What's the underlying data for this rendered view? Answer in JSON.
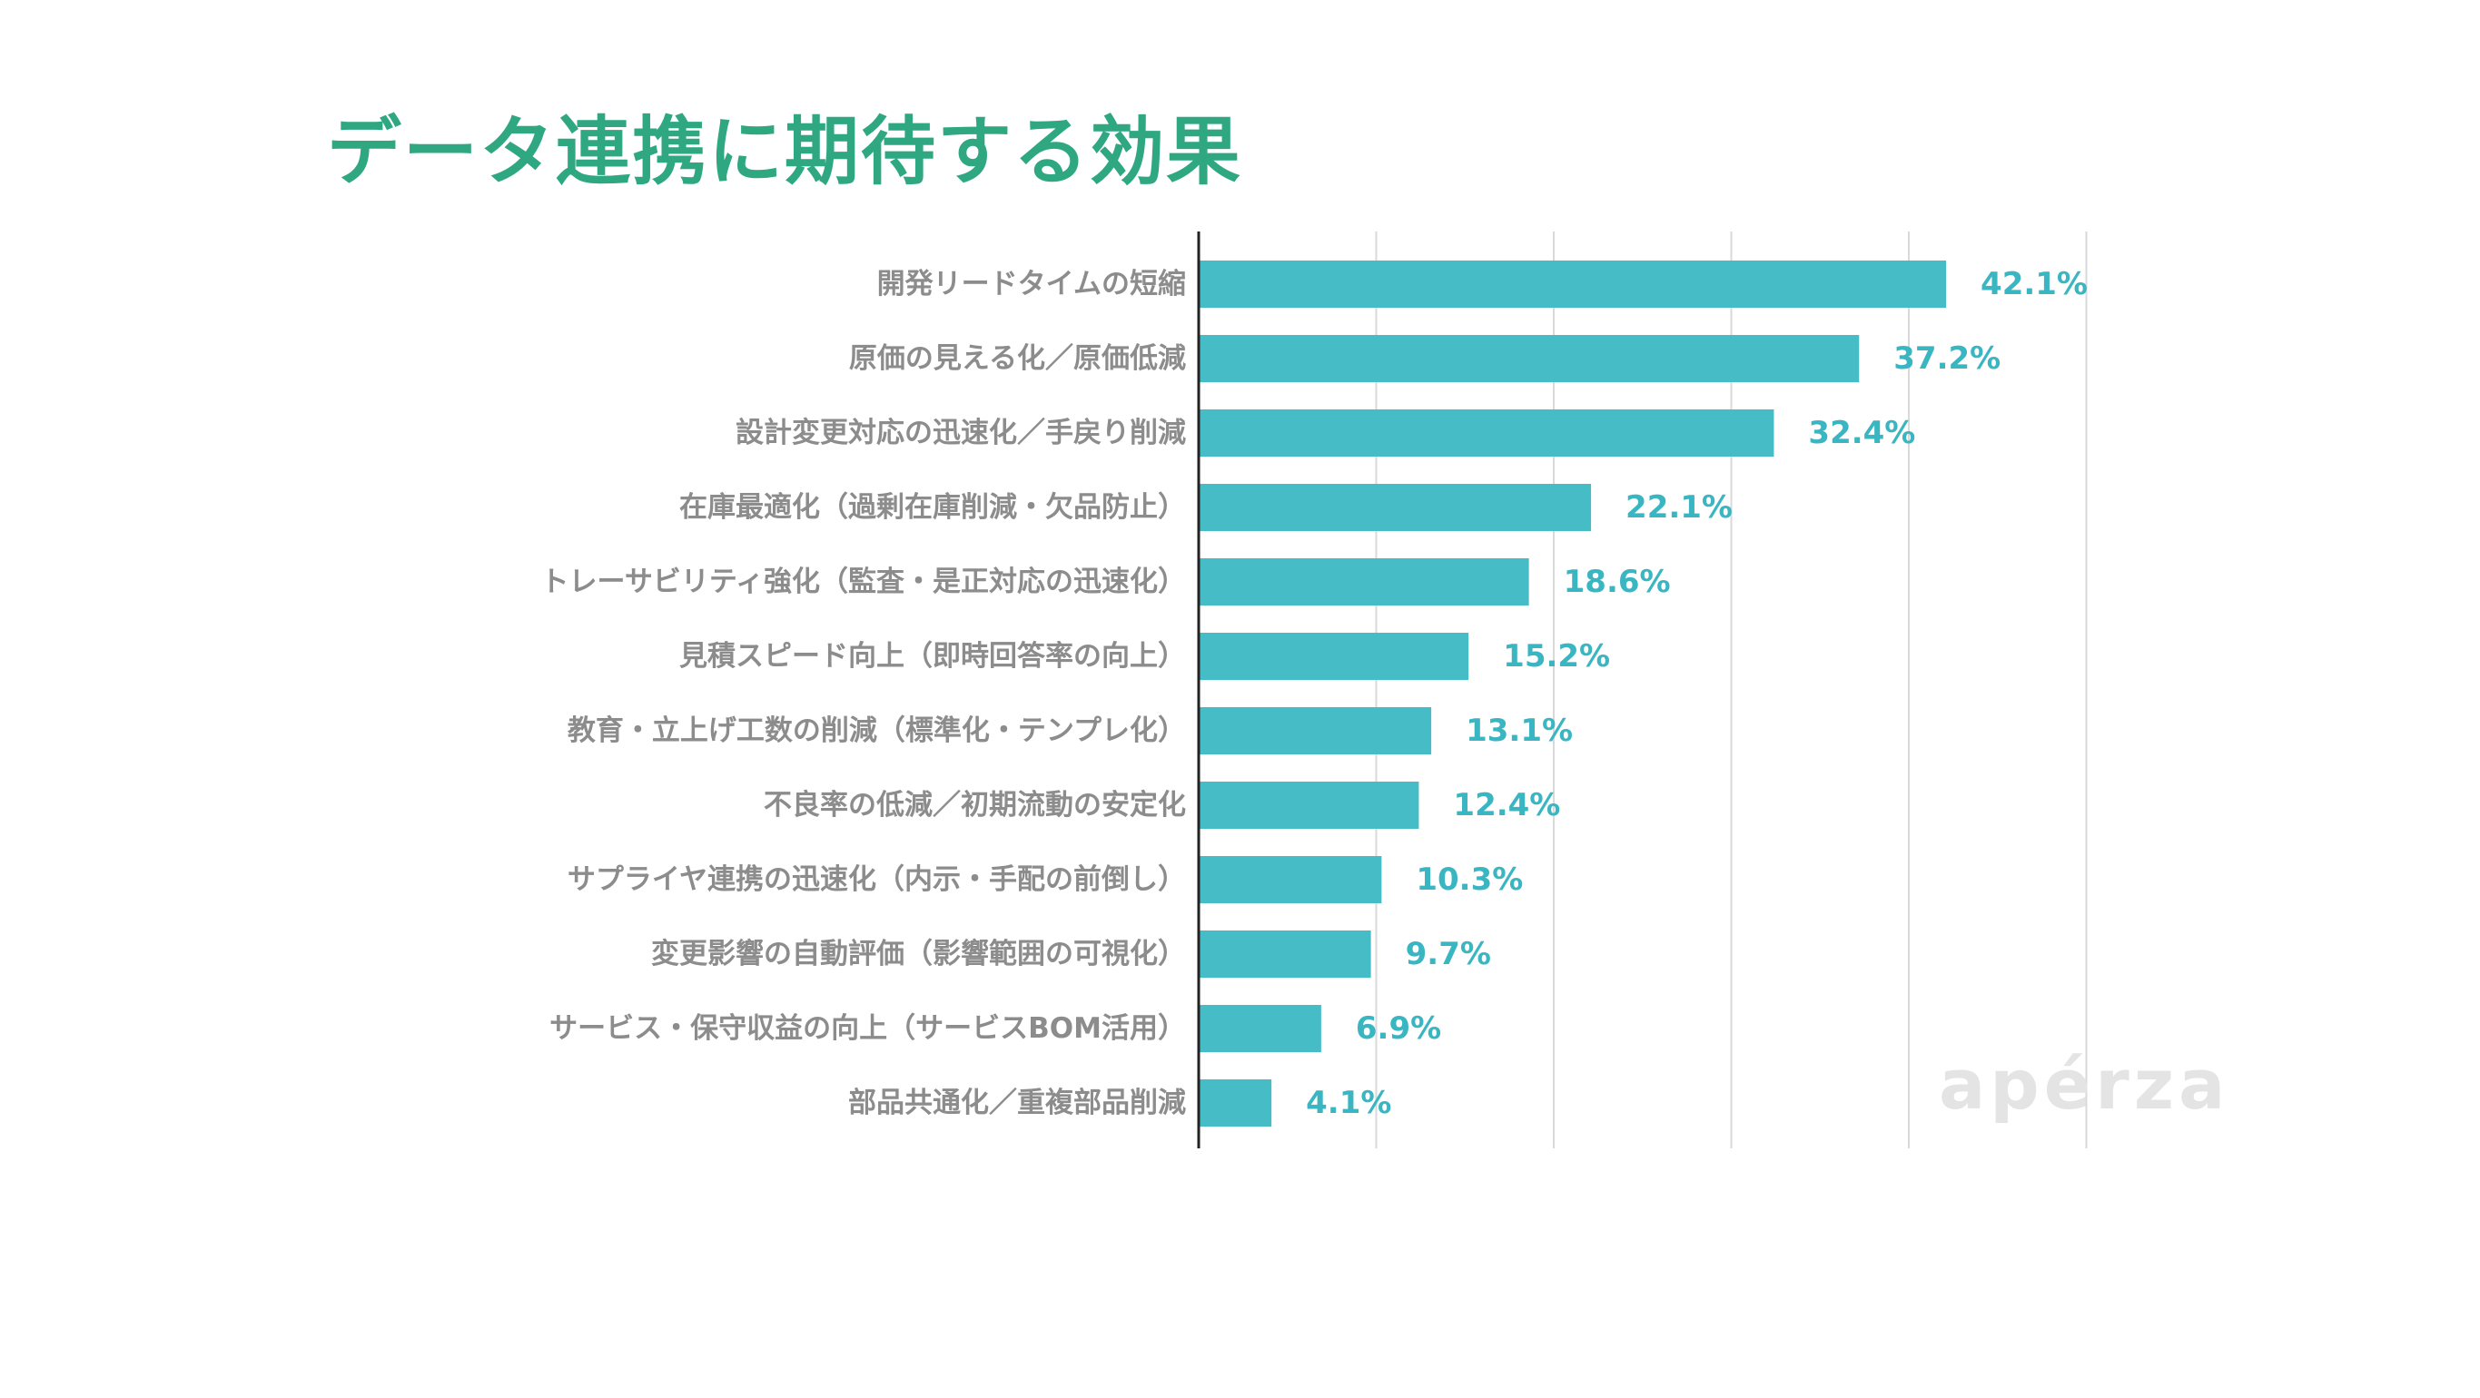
{
  "chart_data": {
    "type": "bar",
    "orientation": "horizontal",
    "title": "データ連携に期待する効果",
    "categories": [
      "開発リードタイムの短縮",
      "原価の見える化／原価低減",
      "設計変更対応の迅速化／手戻り削減",
      "在庫最適化（過剰在庫削減・欠品防止）",
      "トレーサビリティ強化（監査・是正対応の迅速化）",
      "見積スピード向上（即時回答率の向上）",
      "教育・立上げ工数の削減（標準化・テンプレ化）",
      "不良率の低減／初期流動の安定化",
      "サプライヤ連携の迅速化（内示・手配の前倒し）",
      "変更影響の自動評価（影響範囲の可視化）",
      "サービス・保守収益の向上（サービスBOM活用）",
      "部品共通化／重複部品削減"
    ],
    "values": [
      42.1,
      37.2,
      32.4,
      22.1,
      18.6,
      15.2,
      13.1,
      12.4,
      10.3,
      9.7,
      6.9,
      4.1
    ],
    "value_labels": [
      "42.1%",
      "37.2%",
      "32.4%",
      "22.1%",
      "18.6%",
      "15.2%",
      "13.1%",
      "12.4%",
      "10.3%",
      "9.7%",
      "6.9%",
      "4.1%"
    ],
    "xlim": [
      0,
      50
    ],
    "x_gridlines": [
      0,
      10,
      20,
      30,
      40,
      50
    ],
    "grid": true,
    "legend": "none",
    "xlabel": "",
    "ylabel": ""
  },
  "colors": {
    "title": "#2fa882",
    "bar": "#45bcc6",
    "value_label": "#3ab6c2",
    "category_label": "#8c8c8c",
    "gridline": "#d9d9d9",
    "axis": "#222222",
    "watermark": "#e4e4e4"
  },
  "watermark": {
    "text": "apérza"
  }
}
